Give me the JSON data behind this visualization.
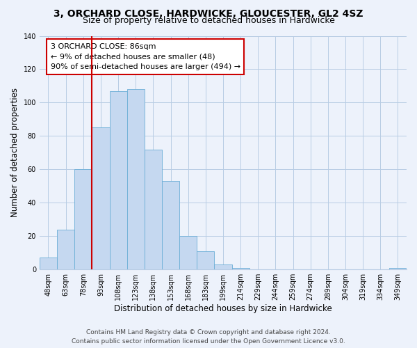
{
  "title": "3, ORCHARD CLOSE, HARDWICKE, GLOUCESTER, GL2 4SZ",
  "subtitle": "Size of property relative to detached houses in Hardwicke",
  "xlabel": "Distribution of detached houses by size in Hardwicke",
  "ylabel": "Number of detached properties",
  "bar_labels": [
    "48sqm",
    "63sqm",
    "78sqm",
    "93sqm",
    "108sqm",
    "123sqm",
    "138sqm",
    "153sqm",
    "168sqm",
    "183sqm",
    "199sqm",
    "214sqm",
    "229sqm",
    "244sqm",
    "259sqm",
    "274sqm",
    "289sqm",
    "304sqm",
    "319sqm",
    "334sqm",
    "349sqm"
  ],
  "bar_values": [
    7,
    24,
    60,
    85,
    107,
    108,
    72,
    53,
    20,
    11,
    3,
    1,
    0,
    0,
    0,
    0,
    0,
    0,
    0,
    0,
    1
  ],
  "bar_color": "#c5d8f0",
  "bar_edge_color": "#6baed6",
  "vline_index": 2.5,
  "vline_color": "#cc0000",
  "annotation_line1": "3 ORCHARD CLOSE: 86sqm",
  "annotation_line2": "← 9% of detached houses are smaller (48)",
  "annotation_line3": "90% of semi-detached houses are larger (494) →",
  "ylim": [
    0,
    140
  ],
  "yticks": [
    0,
    20,
    40,
    60,
    80,
    100,
    120,
    140
  ],
  "footer_line1": "Contains HM Land Registry data © Crown copyright and database right 2024.",
  "footer_line2": "Contains public sector information licensed under the Open Government Licence v3.0.",
  "bg_color": "#edf2fb",
  "plot_bg_color": "#edf2fb",
  "title_fontsize": 10,
  "subtitle_fontsize": 9,
  "axis_label_fontsize": 8.5,
  "tick_fontsize": 7,
  "annotation_fontsize": 8,
  "footer_fontsize": 6.5
}
